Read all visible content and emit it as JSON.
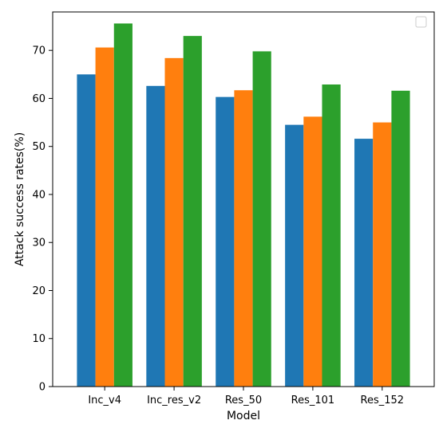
{
  "chart_data": {
    "type": "bar",
    "xlabel": "Model",
    "ylabel": "Attack success rates(%)",
    "categories": [
      "Inc_v4",
      "Inc_res_v2",
      "Res_50",
      "Res_101",
      "Res_152"
    ],
    "series": [
      {
        "color": "#1f77b4",
        "values": [
          65.0,
          62.6,
          60.3,
          54.5,
          51.6
        ]
      },
      {
        "color": "#ff7f0e",
        "values": [
          70.6,
          68.4,
          61.7,
          56.2,
          55.0
        ]
      },
      {
        "color": "#2ca02c",
        "values": [
          75.6,
          73.0,
          69.8,
          62.9,
          61.6
        ]
      }
    ],
    "ylim": [
      0,
      78
    ],
    "yticks": [
      0,
      10,
      20,
      30,
      40,
      50,
      60,
      70
    ],
    "grid": false,
    "legend": {
      "position": "top-right",
      "entries": []
    }
  }
}
